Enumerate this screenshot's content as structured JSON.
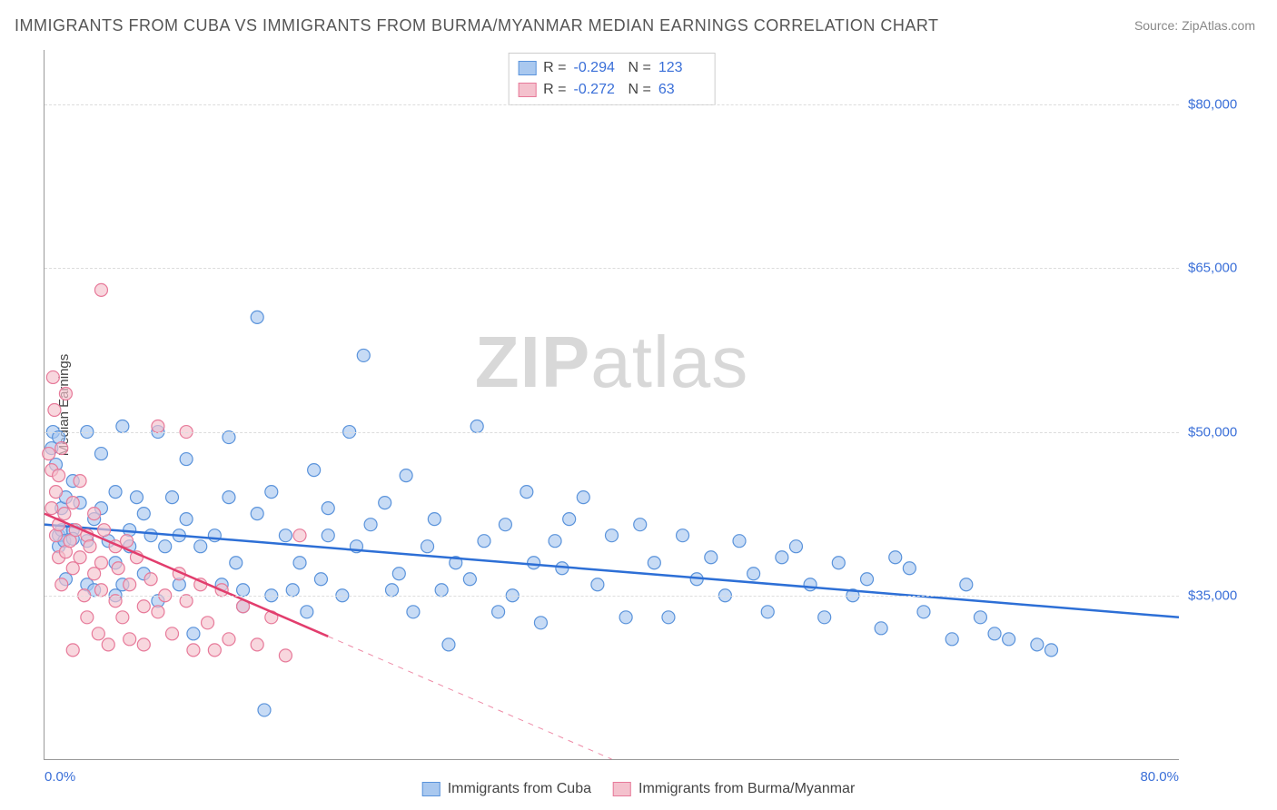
{
  "title": "IMMIGRANTS FROM CUBA VS IMMIGRANTS FROM BURMA/MYANMAR MEDIAN EARNINGS CORRELATION CHART",
  "source": "Source: ZipAtlas.com",
  "watermark_bold": "ZIP",
  "watermark_rest": "atlas",
  "y_axis_title": "Median Earnings",
  "chart": {
    "type": "scatter",
    "xlim": [
      0,
      80
    ],
    "ylim": [
      20000,
      85000
    ],
    "x_ticks": [
      {
        "v": 0,
        "label": "0.0%"
      },
      {
        "v": 80,
        "label": "80.0%"
      }
    ],
    "y_ticks": [
      {
        "v": 35000,
        "label": "$35,000"
      },
      {
        "v": 50000,
        "label": "$50,000"
      },
      {
        "v": 65000,
        "label": "$65,000"
      },
      {
        "v": 80000,
        "label": "$80,000"
      }
    ],
    "background_color": "#ffffff",
    "grid_color": "#dddddd",
    "marker_radius": 7,
    "marker_stroke_width": 1.2,
    "trend_line_width": 2.5,
    "series": [
      {
        "name": "Immigrants from Cuba",
        "fill": "#a9c8ef",
        "stroke": "#5a93db",
        "trend_color": "#2d6fd6",
        "trend": {
          "x1": 0,
          "y1": 41500,
          "x2": 80,
          "y2": 33000,
          "dash_after_x": null
        },
        "R": "-0.294",
        "N": "123",
        "points": [
          [
            0.5,
            48500
          ],
          [
            0.6,
            50000
          ],
          [
            0.8,
            47000
          ],
          [
            1,
            49500
          ],
          [
            1,
            39500
          ],
          [
            1,
            40500
          ],
          [
            1.2,
            41000
          ],
          [
            1.2,
            43000
          ],
          [
            1.4,
            40000
          ],
          [
            1.5,
            44000
          ],
          [
            1.5,
            36500
          ],
          [
            2,
            41000
          ],
          [
            2,
            45500
          ],
          [
            2,
            40200
          ],
          [
            2.5,
            43500
          ],
          [
            3,
            40000
          ],
          [
            3,
            36000
          ],
          [
            3,
            50000
          ],
          [
            3.5,
            35500
          ],
          [
            3.5,
            42000
          ],
          [
            4,
            43000
          ],
          [
            4,
            48000
          ],
          [
            4.5,
            40000
          ],
          [
            5,
            44500
          ],
          [
            5,
            35000
          ],
          [
            5,
            38000
          ],
          [
            5.5,
            36000
          ],
          [
            5.5,
            50500
          ],
          [
            6,
            39500
          ],
          [
            6,
            41000
          ],
          [
            6.5,
            44000
          ],
          [
            7,
            42500
          ],
          [
            7,
            37000
          ],
          [
            7.5,
            40500
          ],
          [
            8,
            34500
          ],
          [
            8,
            50000
          ],
          [
            8.5,
            39500
          ],
          [
            9,
            44000
          ],
          [
            9.5,
            40500
          ],
          [
            9.5,
            36000
          ],
          [
            10,
            42000
          ],
          [
            10,
            47500
          ],
          [
            10.5,
            31500
          ],
          [
            11,
            39500
          ],
          [
            12,
            40500
          ],
          [
            12.5,
            36000
          ],
          [
            13,
            49500
          ],
          [
            13,
            44000
          ],
          [
            13.5,
            38000
          ],
          [
            14,
            35500
          ],
          [
            14,
            34000
          ],
          [
            15,
            42500
          ],
          [
            15,
            60500
          ],
          [
            15.5,
            24500
          ],
          [
            16,
            35000
          ],
          [
            16,
            44500
          ],
          [
            17,
            40500
          ],
          [
            17.5,
            35500
          ],
          [
            18,
            38000
          ],
          [
            18.5,
            33500
          ],
          [
            19,
            46500
          ],
          [
            19.5,
            36500
          ],
          [
            20,
            43000
          ],
          [
            20,
            40500
          ],
          [
            21,
            35000
          ],
          [
            21.5,
            50000
          ],
          [
            22,
            39500
          ],
          [
            22.5,
            57000
          ],
          [
            23,
            41500
          ],
          [
            24,
            43500
          ],
          [
            24.5,
            35500
          ],
          [
            25,
            37000
          ],
          [
            25.5,
            46000
          ],
          [
            26,
            33500
          ],
          [
            27,
            39500
          ],
          [
            27.5,
            42000
          ],
          [
            28,
            35500
          ],
          [
            28.5,
            30500
          ],
          [
            29,
            38000
          ],
          [
            30,
            36500
          ],
          [
            30.5,
            50500
          ],
          [
            31,
            40000
          ],
          [
            32,
            33500
          ],
          [
            32.5,
            41500
          ],
          [
            33,
            35000
          ],
          [
            34,
            44500
          ],
          [
            34.5,
            38000
          ],
          [
            35,
            32500
          ],
          [
            36,
            40000
          ],
          [
            36.5,
            37500
          ],
          [
            37,
            42000
          ],
          [
            38,
            44000
          ],
          [
            39,
            36000
          ],
          [
            40,
            40500
          ],
          [
            41,
            33000
          ],
          [
            42,
            41500
          ],
          [
            43,
            38000
          ],
          [
            44,
            33000
          ],
          [
            45,
            40500
          ],
          [
            46,
            36500
          ],
          [
            47,
            38500
          ],
          [
            48,
            35000
          ],
          [
            49,
            40000
          ],
          [
            50,
            37000
          ],
          [
            51,
            33500
          ],
          [
            52,
            38500
          ],
          [
            53,
            39500
          ],
          [
            54,
            36000
          ],
          [
            55,
            33000
          ],
          [
            56,
            38000
          ],
          [
            57,
            35000
          ],
          [
            58,
            36500
          ],
          [
            59,
            32000
          ],
          [
            60,
            38500
          ],
          [
            61,
            37500
          ],
          [
            62,
            33500
          ],
          [
            64,
            31000
          ],
          [
            65,
            36000
          ],
          [
            66,
            33000
          ],
          [
            67,
            31500
          ],
          [
            68,
            31000
          ],
          [
            70,
            30500
          ],
          [
            71,
            30000
          ]
        ]
      },
      {
        "name": "Immigrants from Burma/Myanmar",
        "fill": "#f4c1cd",
        "stroke": "#e77a9a",
        "trend_color": "#e23d6d",
        "trend": {
          "x1": 0,
          "y1": 42500,
          "x2": 40,
          "y2": 20000,
          "dash_after_x": 20
        },
        "R": "-0.272",
        "N": "63",
        "points": [
          [
            0.3,
            48000
          ],
          [
            0.5,
            46500
          ],
          [
            0.5,
            43000
          ],
          [
            0.6,
            55000
          ],
          [
            0.8,
            40500
          ],
          [
            0.8,
            44500
          ],
          [
            1,
            38500
          ],
          [
            1,
            41500
          ],
          [
            1,
            46000
          ],
          [
            1.2,
            48500
          ],
          [
            1.2,
            36000
          ],
          [
            1.4,
            42500
          ],
          [
            1.5,
            39000
          ],
          [
            1.5,
            53500
          ],
          [
            1.8,
            40000
          ],
          [
            2,
            37500
          ],
          [
            2,
            43500
          ],
          [
            2,
            30000
          ],
          [
            2.2,
            41000
          ],
          [
            2.5,
            38500
          ],
          [
            2.5,
            45500
          ],
          [
            2.8,
            35000
          ],
          [
            3,
            40500
          ],
          [
            3,
            33000
          ],
          [
            3.2,
            39500
          ],
          [
            3.5,
            37000
          ],
          [
            3.5,
            42500
          ],
          [
            3.8,
            31500
          ],
          [
            4,
            38000
          ],
          [
            4,
            35500
          ],
          [
            4.2,
            41000
          ],
          [
            4.5,
            30500
          ],
          [
            5,
            39500
          ],
          [
            5,
            34500
          ],
          [
            5.2,
            37500
          ],
          [
            5.5,
            33000
          ],
          [
            5.8,
            40000
          ],
          [
            6,
            36000
          ],
          [
            6,
            31000
          ],
          [
            6.5,
            38500
          ],
          [
            7,
            34000
          ],
          [
            7,
            30500
          ],
          [
            7.5,
            36500
          ],
          [
            8,
            33500
          ],
          [
            8,
            50500
          ],
          [
            8.5,
            35000
          ],
          [
            9,
            31500
          ],
          [
            9.5,
            37000
          ],
          [
            10,
            50000
          ],
          [
            10,
            34500
          ],
          [
            10.5,
            30000
          ],
          [
            11,
            36000
          ],
          [
            11.5,
            32500
          ],
          [
            12,
            30000
          ],
          [
            12.5,
            35500
          ],
          [
            13,
            31000
          ],
          [
            14,
            34000
          ],
          [
            15,
            30500
          ],
          [
            16,
            33000
          ],
          [
            17,
            29500
          ],
          [
            18,
            40500
          ],
          [
            4,
            63000
          ],
          [
            0.7,
            52000
          ]
        ]
      }
    ]
  },
  "stats_box": {
    "rows": [
      {
        "swatch_fill": "#a9c8ef",
        "swatch_stroke": "#5a93db",
        "R_label": "R =",
        "R": "-0.294",
        "N_label": "N =",
        "N": "123"
      },
      {
        "swatch_fill": "#f4c1cd",
        "swatch_stroke": "#e77a9a",
        "R_label": "R =",
        "R": "-0.272",
        "N_label": "N =",
        "N": "63"
      }
    ]
  },
  "bottom_legend": [
    {
      "swatch_fill": "#a9c8ef",
      "swatch_stroke": "#5a93db",
      "label": "Immigrants from Cuba"
    },
    {
      "swatch_fill": "#f4c1cd",
      "swatch_stroke": "#e77a9a",
      "label": "Immigrants from Burma/Myanmar"
    }
  ]
}
